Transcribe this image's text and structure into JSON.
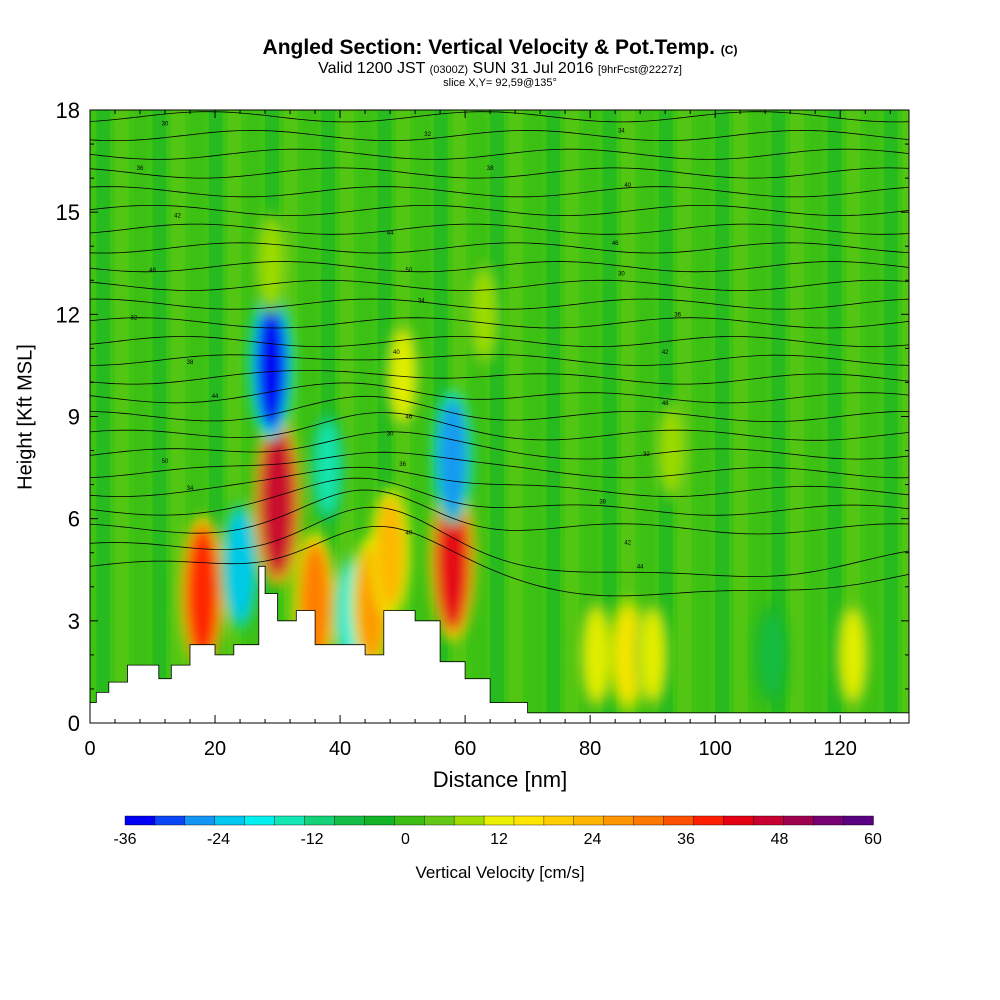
{
  "chart_data": {
    "type": "heatmap",
    "title": "Angled Section: Vertical Velocity & Pot.Temp.",
    "title_unit": "(C)",
    "subtitle_main": "Valid 1200 JST",
    "subtitle_utc": "(0300Z)",
    "subtitle_date": "SUN 31 Jul 2016",
    "subtitle_fcst": "[9hrFcst@2227z]",
    "slice_label": "slice X,Y= 92,59@135°",
    "xlabel": "Distance [nm]",
    "ylabel": "Height [Kft MSL]",
    "xlim": [
      0,
      131
    ],
    "ylim": [
      0,
      18
    ],
    "x_ticks": [
      "0",
      "20",
      "40",
      "60",
      "80",
      "100",
      "120"
    ],
    "y_ticks": [
      "0",
      "3",
      "6",
      "9",
      "12",
      "15",
      "18"
    ],
    "colorbar": {
      "label": "Vertical Velocity [cm/s]",
      "min": -36,
      "max": 60,
      "step": 4,
      "tick_labels": [
        "-36",
        "-24",
        "-12",
        "0",
        "12",
        "24",
        "36",
        "48",
        "60"
      ],
      "colors": [
        "#0000f5",
        "#0a46f5",
        "#1496f5",
        "#00c8f0",
        "#00f0f0",
        "#14e6b4",
        "#14d278",
        "#14be46",
        "#14b428",
        "#3cbe14",
        "#64c814",
        "#a0dc00",
        "#ebf000",
        "#ffe600",
        "#ffcd00",
        "#ffb400",
        "#ff9600",
        "#ff7800",
        "#ff5000",
        "#ff1e00",
        "#e60014",
        "#c80032",
        "#a00050",
        "#780073",
        "#5a0082"
      ]
    },
    "pot_temp_contour_labels": [
      "30",
      "32",
      "34",
      "36",
      "38",
      "40",
      "42",
      "44",
      "46",
      "48",
      "50"
    ],
    "terrain_profile_nm_kft": [
      [
        0,
        0.6
      ],
      [
        1,
        0.9
      ],
      [
        3,
        1.2
      ],
      [
        6,
        1.7
      ],
      [
        11,
        1.3
      ],
      [
        13,
        1.7
      ],
      [
        16,
        2.3
      ],
      [
        20,
        2.0
      ],
      [
        23,
        2.3
      ],
      [
        27,
        4.6
      ],
      [
        28,
        3.8
      ],
      [
        30,
        3.0
      ],
      [
        33,
        3.3
      ],
      [
        36,
        2.3
      ],
      [
        40,
        2.3
      ],
      [
        44,
        2.0
      ],
      [
        47,
        3.3
      ],
      [
        52,
        3.0
      ],
      [
        56,
        1.8
      ],
      [
        60,
        1.3
      ],
      [
        64,
        0.6
      ],
      [
        70,
        0.3
      ],
      [
        131,
        0.3
      ]
    ],
    "velocity_features": [
      {
        "x": 18,
        "z": 3.8,
        "value": 40
      },
      {
        "x": 24,
        "z": 4.6,
        "value": -24
      },
      {
        "x": 30,
        "z": 6.5,
        "value": 48
      },
      {
        "x": 29,
        "z": 10.5,
        "value": -36
      },
      {
        "x": 36,
        "z": 3.5,
        "value": 32
      },
      {
        "x": 38,
        "z": 7.5,
        "value": -14
      },
      {
        "x": 42,
        "z": 3.2,
        "value": -18
      },
      {
        "x": 45,
        "z": 3.5,
        "value": 28
      },
      {
        "x": 48,
        "z": 5.0,
        "value": 24
      },
      {
        "x": 58,
        "z": 4.8,
        "value": 44
      },
      {
        "x": 58,
        "z": 7.8,
        "value": -28
      },
      {
        "x": 29,
        "z": 13.5,
        "value": 10
      },
      {
        "x": 50,
        "z": 10.2,
        "value": 12
      },
      {
        "x": 63,
        "z": 12.0,
        "value": 10
      },
      {
        "x": 81,
        "z": 2.0,
        "value": 14
      },
      {
        "x": 86,
        "z": 2.0,
        "value": 16
      },
      {
        "x": 90,
        "z": 2.0,
        "value": 12
      },
      {
        "x": 93,
        "z": 8.0,
        "value": 8
      },
      {
        "x": 109,
        "z": 2.0,
        "value": -6
      },
      {
        "x": 122,
        "z": 2.0,
        "value": 12
      }
    ]
  }
}
